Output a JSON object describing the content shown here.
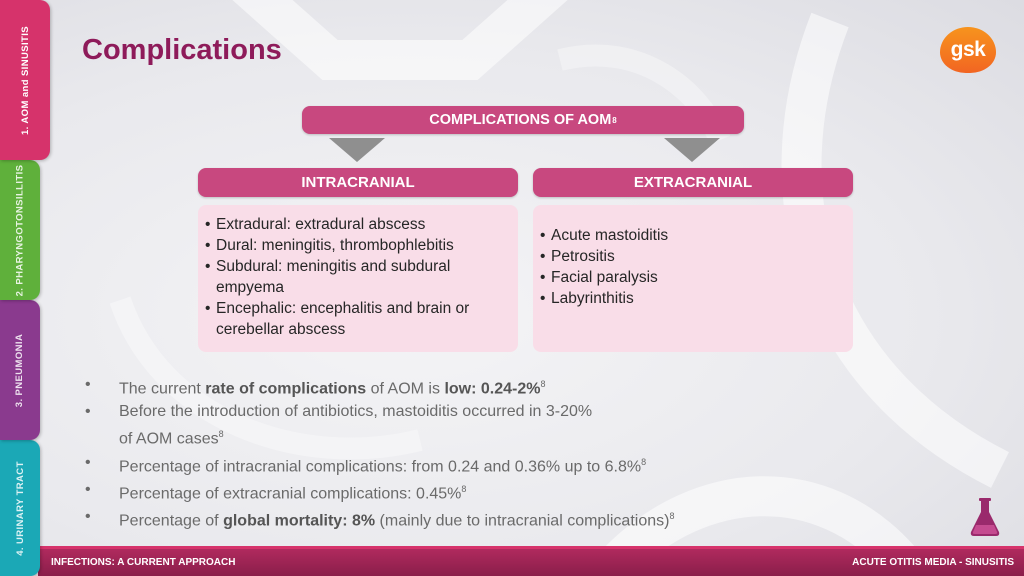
{
  "side_tabs": [
    {
      "label": "1. AOM and SINUSITIS",
      "color": "#d6336b",
      "active": true
    },
    {
      "label": "2. PHARYNGOTONSILLITIS",
      "color": "#5fb03b",
      "active": false
    },
    {
      "label": "3. PNEUMONIA",
      "color": "#8a3a8e",
      "active": false
    },
    {
      "label": "4. URINARY TRACT",
      "color": "#1ba8b6",
      "active": false
    }
  ],
  "title": "Complications",
  "logo": {
    "text": "gsk",
    "icon": "gsk-logo"
  },
  "diagram": {
    "main": {
      "label": "COMPLICATIONS OF AOM",
      "ref": "8"
    },
    "intracranial": {
      "label": "INTRACRANIAL",
      "items": [
        "Extradural: extradural abscess",
        "Dural: meningitis, thrombophlebitis",
        "Subdural: meningitis and subdural empyema",
        "Encephalic: encephalitis and brain or cerebellar abscess"
      ]
    },
    "extracranial": {
      "label": "EXTRACRANIAL",
      "items": [
        "Acute mastoiditis",
        "Petrositis",
        "Facial paralysis",
        "Labyrinthitis"
      ]
    }
  },
  "notes": {
    "n1": {
      "pre": "The current ",
      "b1": "rate of complications",
      "mid": " of AOM is ",
      "b2": "low: 0.24-2%",
      "ref": "8"
    },
    "n2": {
      "text": "Before the introduction of antibiotics, mastoiditis occurred in 3-20% of AOM cases",
      "ref": "8"
    },
    "n3": {
      "text": "Percentage of intracranial complications: from 0.24 and 0.36% up to 6.8%",
      "ref": "8"
    },
    "n4": {
      "text": "Percentage of extracranial complications: 0.45%",
      "ref": "8"
    },
    "n5": {
      "pre": "Percentage of ",
      "b1": "global mortality: 8%",
      "post": " (mainly due to intracranial complications)",
      "ref": "8"
    }
  },
  "footer": {
    "left": "INFECTIONS: A CURRENT APPROACH",
    "right": "ACUTE OTITIS MEDIA - SINUSITIS"
  },
  "icons": {
    "flask": "flask-icon"
  }
}
